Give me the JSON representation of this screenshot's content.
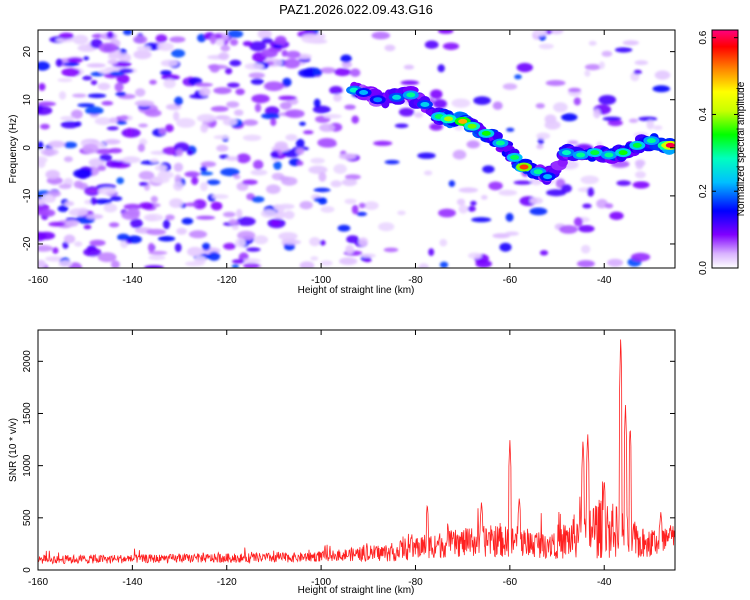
{
  "title": "PAZ1.2026.022.09.43.G16",
  "chart_data": [
    {
      "type": "heatmap",
      "name": "spectrogram",
      "xlabel": "Height of straight line (km)",
      "ylabel": "Frequency (Hz)",
      "xlim": [
        -160,
        -25
      ],
      "ylim": [
        -25,
        24.5
      ],
      "xticks": [
        -160,
        -140,
        -120,
        -100,
        -80,
        -60,
        -40
      ],
      "yticks": [
        -20,
        -10,
        0,
        10,
        20
      ],
      "colorbar": {
        "label": "Normalized spectral amplitude",
        "range": [
          0.0,
          0.62
        ],
        "ticks": [
          "0.0",
          "0.2",
          "0.4",
          "0.6"
        ],
        "colors": [
          "#ffffff",
          "#d9b3ff",
          "#8000ff",
          "#0000ff",
          "#00bfff",
          "#00ffbf",
          "#00ff00",
          "#c8ff00",
          "#ffff00",
          "#ff8000",
          "#ff0000",
          "#ff0080"
        ]
      },
      "signal_track": [
        {
          "x": -93,
          "f": 12,
          "a": 0.28
        },
        {
          "x": -91,
          "f": 11.5,
          "a": 0.22
        },
        {
          "x": -88,
          "f": 10,
          "a": 0.2
        },
        {
          "x": -84,
          "f": 10.5,
          "a": 0.25
        },
        {
          "x": -81,
          "f": 11,
          "a": 0.3
        },
        {
          "x": -78,
          "f": 9,
          "a": 0.24
        },
        {
          "x": -75,
          "f": 6.5,
          "a": 0.32
        },
        {
          "x": -73,
          "f": 6,
          "a": 0.4
        },
        {
          "x": -70,
          "f": 5.5,
          "a": 0.5
        },
        {
          "x": -68,
          "f": 4.5,
          "a": 0.38
        },
        {
          "x": -65,
          "f": 3,
          "a": 0.35
        },
        {
          "x": -62,
          "f": 1,
          "a": 0.3
        },
        {
          "x": -59,
          "f": -2,
          "a": 0.32
        },
        {
          "x": -57,
          "f": -4,
          "a": 0.55
        },
        {
          "x": -54,
          "f": -5,
          "a": 0.3
        },
        {
          "x": -52,
          "f": -6,
          "a": 0.22
        },
        {
          "x": -48,
          "f": -1,
          "a": 0.28
        },
        {
          "x": -45,
          "f": -1.5,
          "a": 0.3
        },
        {
          "x": -42,
          "f": -1,
          "a": 0.33
        },
        {
          "x": -39,
          "f": -1.5,
          "a": 0.3
        },
        {
          "x": -36,
          "f": -1,
          "a": 0.35
        },
        {
          "x": -33,
          "f": 0.5,
          "a": 0.33
        },
        {
          "x": -30,
          "f": 1.5,
          "a": 0.3
        },
        {
          "x": -27,
          "f": 0.5,
          "a": 0.42
        },
        {
          "x": -26,
          "f": 0.5,
          "a": 0.6
        }
      ]
    },
    {
      "type": "line",
      "name": "snr",
      "xlabel": "Height of straight line (km)",
      "ylabel": "SNR (10 * v/v)",
      "xlim": [
        -160,
        -25
      ],
      "ylim": [
        0,
        2300
      ],
      "xticks": [
        -160,
        -140,
        -120,
        -100,
        -80,
        -60,
        -40
      ],
      "yticks": [
        0,
        500,
        1000,
        1500,
        2000
      ],
      "color": "#ff2020",
      "envelope": [
        {
          "x": -160,
          "base": 100,
          "amp": 70
        },
        {
          "x": -130,
          "base": 110,
          "amp": 70
        },
        {
          "x": -105,
          "base": 120,
          "amp": 80
        },
        {
          "x": -97,
          "base": 140,
          "amp": 90
        },
        {
          "x": -85,
          "base": 170,
          "amp": 150
        },
        {
          "x": -78,
          "base": 230,
          "amp": 200
        },
        {
          "x": -70,
          "base": 260,
          "amp": 230
        },
        {
          "x": -63,
          "base": 280,
          "amp": 260
        },
        {
          "x": -55,
          "base": 250,
          "amp": 220
        },
        {
          "x": -48,
          "base": 280,
          "amp": 300
        },
        {
          "x": -43,
          "base": 400,
          "amp": 500
        },
        {
          "x": -38,
          "base": 380,
          "amp": 450
        },
        {
          "x": -32,
          "base": 250,
          "amp": 250
        },
        {
          "x": -25,
          "base": 300,
          "amp": 250
        }
      ],
      "peaks": [
        {
          "x": -77.5,
          "y": 640
        },
        {
          "x": -66,
          "y": 660
        },
        {
          "x": -60,
          "y": 1250
        },
        {
          "x": -58,
          "y": 700
        },
        {
          "x": -44.5,
          "y": 1260
        },
        {
          "x": -43.5,
          "y": 1320
        },
        {
          "x": -40,
          "y": 880
        },
        {
          "x": -36.5,
          "y": 2270
        },
        {
          "x": -35.5,
          "y": 1600
        },
        {
          "x": -34.5,
          "y": 1400
        },
        {
          "x": -28,
          "y": 560
        }
      ]
    }
  ]
}
